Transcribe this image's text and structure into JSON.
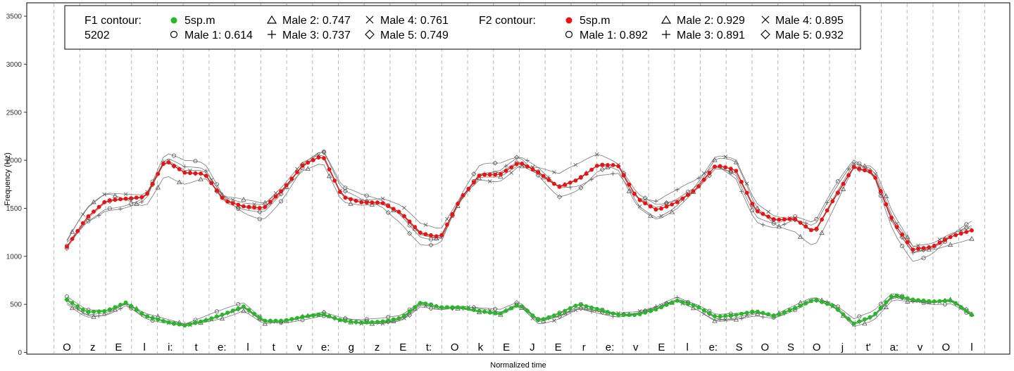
{
  "chart_data": {
    "type": "line",
    "xlabel": "Normalized time",
    "ylabel": "Frequency (Hz)",
    "ylim": [
      0,
      3600
    ],
    "yticks": [
      0,
      500,
      1000,
      1500,
      2000,
      2500,
      3000,
      3500
    ],
    "grid": "vertical dashed segment boundaries",
    "segments": [
      "O",
      "z",
      "E",
      "l",
      "i:",
      "t",
      "e:",
      "l",
      "t",
      "v",
      "e:",
      "g",
      "z",
      "E",
      "t:",
      "O",
      "k",
      "E",
      "J",
      "E",
      "r",
      "e:",
      "v",
      "E",
      "l",
      "e:",
      "S",
      "O",
      "S",
      "O",
      "j",
      "t'",
      "a:",
      "v",
      "O",
      "l"
    ],
    "legend": {
      "placement": "top",
      "f1_title": "F1 contour:",
      "f1_id": "5202",
      "f1_entries": [
        {
          "marker": "filled-circle",
          "color": "#22bb22",
          "label": "5sp.m"
        },
        {
          "marker": "circle",
          "label": "Male 1: 0.614"
        },
        {
          "marker": "triangle",
          "label": "Male 2: 0.747"
        },
        {
          "marker": "plus",
          "label": "Male 3: 0.737"
        },
        {
          "marker": "cross",
          "label": "Male 4: 0.761"
        },
        {
          "marker": "diamond",
          "label": "Male 5: 0.749"
        }
      ],
      "f2_title": "F2 contour:",
      "f2_entries": [
        {
          "marker": "filled-circle",
          "color": "#ee1111",
          "label": "5sp.m"
        },
        {
          "marker": "circle",
          "label": "Male 1: 0.892"
        },
        {
          "marker": "triangle",
          "label": "Male 2: 0.929"
        },
        {
          "marker": "plus",
          "label": "Male 3: 0.891"
        },
        {
          "marker": "cross",
          "label": "Male 4: 0.895"
        },
        {
          "marker": "diamond",
          "label": "Male 5: 0.932"
        }
      ]
    },
    "series": [
      {
        "name": "F2 5sp.m",
        "color": "#ee1111",
        "values": [
          1100,
          1400,
          1580,
          1600,
          1620,
          2000,
          1870,
          1860,
          1580,
          1520,
          1500,
          1700,
          1950,
          2050,
          1620,
          1560,
          1560,
          1450,
          1240,
          1200,
          1600,
          1850,
          1850,
          1980,
          1870,
          1720,
          1800,
          1950,
          1950,
          1600,
          1480,
          1560,
          1700,
          1950,
          1900,
          1480,
          1380,
          1390,
          1250,
          1600,
          1930,
          1870,
          1360,
          1070,
          1100,
          1210,
          1270
        ]
      },
      {
        "name": "F1 5sp.m",
        "color": "#22bb22",
        "values": [
          550,
          420,
          430,
          520,
          380,
          320,
          280,
          330,
          400,
          480,
          330,
          330,
          370,
          400,
          330,
          310,
          320,
          360,
          520,
          470,
          470,
          430,
          400,
          500,
          330,
          400,
          500,
          450,
          390,
          390,
          450,
          540,
          480,
          370,
          390,
          430,
          380,
          460,
          550,
          480,
          300,
          380,
          600,
          550,
          530,
          540,
          390
        ]
      }
    ],
    "speaker_traces_note": "Male 1-5 contours drawn as gray lines with markers around the 5sp.m contours"
  }
}
